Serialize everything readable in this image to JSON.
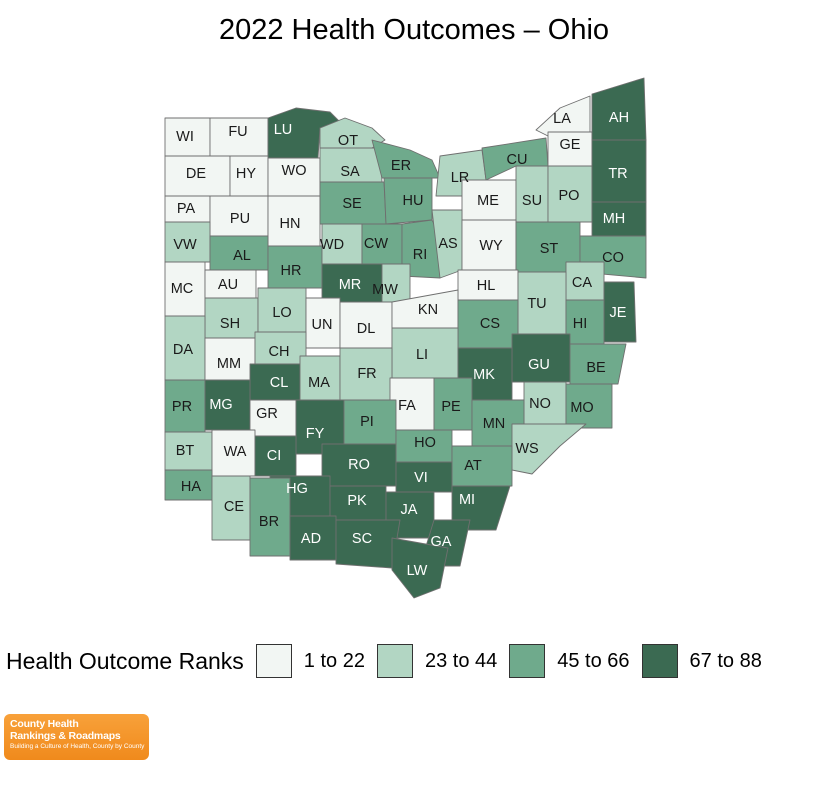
{
  "title": "2022 Health Outcomes – Ohio",
  "legend": {
    "title": "Health Outcome Ranks",
    "items": [
      {
        "label": "1 to 22",
        "color": "#f2f6f3"
      },
      {
        "label": "23 to 44",
        "color": "#b2d6c3"
      },
      {
        "label": "45 to 66",
        "color": "#6faa8c"
      },
      {
        "label": "67 to 88",
        "color": "#3b6a52"
      }
    ]
  },
  "counties": [
    {
      "abbr": "WI",
      "tier": 0
    },
    {
      "abbr": "FU",
      "tier": 0
    },
    {
      "abbr": "LU",
      "tier": 3
    },
    {
      "abbr": "OT",
      "tier": 1
    },
    {
      "abbr": "DE",
      "tier": 0
    },
    {
      "abbr": "HY",
      "tier": 0
    },
    {
      "abbr": "WO",
      "tier": 0
    },
    {
      "abbr": "SA",
      "tier": 1
    },
    {
      "abbr": "ER",
      "tier": 2
    },
    {
      "abbr": "LR",
      "tier": 1
    },
    {
      "abbr": "CU",
      "tier": 2
    },
    {
      "abbr": "LA",
      "tier": 0
    },
    {
      "abbr": "GE",
      "tier": 0
    },
    {
      "abbr": "AH",
      "tier": 3
    },
    {
      "abbr": "PA",
      "tier": 0
    },
    {
      "abbr": "PU",
      "tier": 0
    },
    {
      "abbr": "HN",
      "tier": 0
    },
    {
      "abbr": "SE",
      "tier": 2
    },
    {
      "abbr": "HU",
      "tier": 2
    },
    {
      "abbr": "ME",
      "tier": 0
    },
    {
      "abbr": "SU",
      "tier": 1
    },
    {
      "abbr": "PO",
      "tier": 1
    },
    {
      "abbr": "TR",
      "tier": 3
    },
    {
      "abbr": "VW",
      "tier": 1
    },
    {
      "abbr": "AL",
      "tier": 2
    },
    {
      "abbr": "HR",
      "tier": 2
    },
    {
      "abbr": "WD",
      "tier": 1
    },
    {
      "abbr": "CW",
      "tier": 2
    },
    {
      "abbr": "RI",
      "tier": 2
    },
    {
      "abbr": "AS",
      "tier": 1
    },
    {
      "abbr": "WY",
      "tier": 0
    },
    {
      "abbr": "ST",
      "tier": 2
    },
    {
      "abbr": "MH",
      "tier": 3
    },
    {
      "abbr": "CO",
      "tier": 2
    },
    {
      "abbr": "MC",
      "tier": 0
    },
    {
      "abbr": "AU",
      "tier": 0
    },
    {
      "abbr": "MR",
      "tier": 3
    },
    {
      "abbr": "MW",
      "tier": 1
    },
    {
      "abbr": "HL",
      "tier": 0
    },
    {
      "abbr": "CA",
      "tier": 1
    },
    {
      "abbr": "SH",
      "tier": 1
    },
    {
      "abbr": "LO",
      "tier": 1
    },
    {
      "abbr": "UN",
      "tier": 0
    },
    {
      "abbr": "DL",
      "tier": 0
    },
    {
      "abbr": "KN",
      "tier": 0
    },
    {
      "abbr": "TU",
      "tier": 1
    },
    {
      "abbr": "JE",
      "tier": 3
    },
    {
      "abbr": "CS",
      "tier": 2
    },
    {
      "abbr": "HI",
      "tier": 2
    },
    {
      "abbr": "DA",
      "tier": 1
    },
    {
      "abbr": "MM",
      "tier": 0
    },
    {
      "abbr": "CH",
      "tier": 1
    },
    {
      "abbr": "LI",
      "tier": 1
    },
    {
      "abbr": "GU",
      "tier": 3
    },
    {
      "abbr": "BE",
      "tier": 2
    },
    {
      "abbr": "CL",
      "tier": 3
    },
    {
      "abbr": "MA",
      "tier": 1
    },
    {
      "abbr": "FR",
      "tier": 1
    },
    {
      "abbr": "MK",
      "tier": 3
    },
    {
      "abbr": "PR",
      "tier": 2
    },
    {
      "abbr": "MG",
      "tier": 3
    },
    {
      "abbr": "GR",
      "tier": 0
    },
    {
      "abbr": "FA",
      "tier": 0
    },
    {
      "abbr": "PE",
      "tier": 2
    },
    {
      "abbr": "NO",
      "tier": 1
    },
    {
      "abbr": "MO",
      "tier": 2
    },
    {
      "abbr": "FY",
      "tier": 3
    },
    {
      "abbr": "PI",
      "tier": 2
    },
    {
      "abbr": "MN",
      "tier": 2
    },
    {
      "abbr": "BT",
      "tier": 1
    },
    {
      "abbr": "WA",
      "tier": 0
    },
    {
      "abbr": "CI",
      "tier": 3
    },
    {
      "abbr": "HO",
      "tier": 2
    },
    {
      "abbr": "WS",
      "tier": 1
    },
    {
      "abbr": "RO",
      "tier": 3
    },
    {
      "abbr": "AT",
      "tier": 2
    },
    {
      "abbr": "HA",
      "tier": 2
    },
    {
      "abbr": "CE",
      "tier": 1
    },
    {
      "abbr": "HG",
      "tier": 3
    },
    {
      "abbr": "VI",
      "tier": 3
    },
    {
      "abbr": "MI",
      "tier": 3
    },
    {
      "abbr": "PK",
      "tier": 3
    },
    {
      "abbr": "JA",
      "tier": 3
    },
    {
      "abbr": "BR",
      "tier": 2
    },
    {
      "abbr": "AD",
      "tier": 3
    },
    {
      "abbr": "SC",
      "tier": 3
    },
    {
      "abbr": "GA",
      "tier": 3
    },
    {
      "abbr": "LW",
      "tier": 3
    }
  ],
  "logo": {
    "line1": "County Health",
    "line2": "Rankings & Roadmaps",
    "tagline": "Building a Culture of Health, County by County"
  }
}
